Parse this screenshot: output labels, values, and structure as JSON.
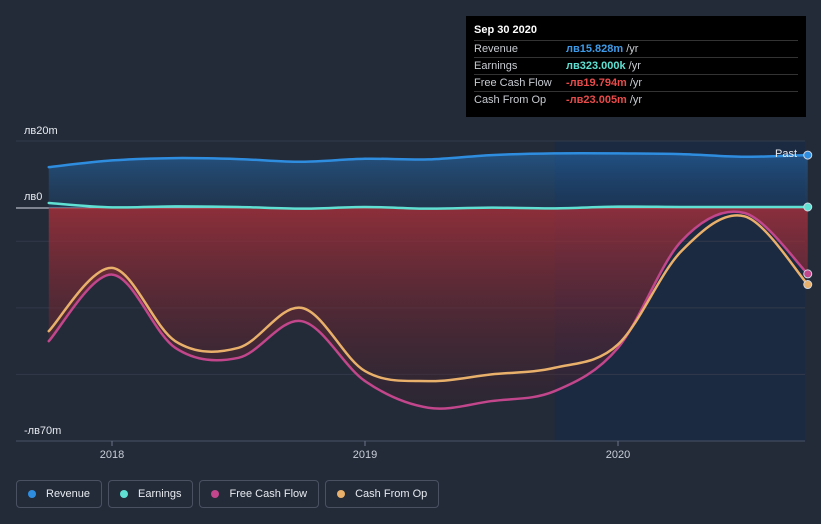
{
  "tooltip": {
    "date": "Sep 30 2020",
    "rows": [
      {
        "label": "Revenue",
        "value": "лв15.828m",
        "unit": "/yr",
        "color": "#3d9be9"
      },
      {
        "label": "Earnings",
        "value": "лв323.000k",
        "unit": "/yr",
        "color": "#5fe0d2"
      },
      {
        "label": "Free Cash Flow",
        "value": "-лв19.794m",
        "unit": "/yr",
        "color": "#e94a4a"
      },
      {
        "label": "Cash From Op",
        "value": "-лв23.005m",
        "unit": "/yr",
        "color": "#e94a4a"
      }
    ]
  },
  "past_label": "Past",
  "legend": [
    {
      "label": "Revenue",
      "color": "#2f8de0"
    },
    {
      "label": "Earnings",
      "color": "#5fe0d2"
    },
    {
      "label": "Free Cash Flow",
      "color": "#c2468b"
    },
    {
      "label": "Cash From Op",
      "color": "#e8b06a"
    }
  ],
  "chart_data": {
    "type": "area",
    "y_axis_labels": [
      "лв20m",
      "лв0",
      "-лв70m"
    ],
    "ylim": [
      -70,
      20
    ],
    "x_ticks": [
      "2018",
      "2019",
      "2020"
    ],
    "x_tick_values": [
      2018.0,
      2019.0,
      2020.0
    ],
    "xlim": [
      2017.6,
      2020.75
    ],
    "forecast_shade_start": 2019.75,
    "series": [
      {
        "name": "Revenue",
        "color": "#2f8de0",
        "x": [
          2017.75,
          2018.0,
          2018.25,
          2018.5,
          2018.75,
          2019.0,
          2019.25,
          2019.5,
          2019.75,
          2020.0,
          2020.25,
          2020.5,
          2020.75
        ],
        "y": [
          12.2,
          14.2,
          14.9,
          14.6,
          13.8,
          14.7,
          14.5,
          15.8,
          16.3,
          16.3,
          16.1,
          15.3,
          15.8
        ]
      },
      {
        "name": "Earnings",
        "color": "#5fe0d2",
        "x": [
          2017.75,
          2018.0,
          2018.25,
          2018.5,
          2018.75,
          2019.0,
          2019.25,
          2019.5,
          2019.75,
          2020.0,
          2020.25,
          2020.5,
          2020.75
        ],
        "y": [
          1.5,
          0.2,
          0.5,
          0.3,
          -0.2,
          0.3,
          -0.2,
          0.1,
          -0.1,
          0.4,
          0.3,
          0.3,
          0.3
        ]
      },
      {
        "name": "Free Cash Flow",
        "color": "#c2468b",
        "x": [
          2017.75,
          2018.0,
          2018.25,
          2018.5,
          2018.75,
          2019.0,
          2019.25,
          2019.5,
          2019.75,
          2020.0,
          2020.25,
          2020.5,
          2020.75
        ],
        "y": [
          -40,
          -20,
          -42,
          -45,
          -34,
          -52,
          -60,
          -58,
          -55,
          -42,
          -10,
          -1.5,
          -19.8
        ]
      },
      {
        "name": "Cash From Op",
        "color": "#e8b06a",
        "x": [
          2017.75,
          2018.0,
          2018.25,
          2018.5,
          2018.75,
          2019.0,
          2019.25,
          2019.5,
          2019.75,
          2020.0,
          2020.25,
          2020.5,
          2020.75
        ],
        "y": [
          -37,
          -18,
          -40,
          -42,
          -30,
          -49,
          -52,
          -50,
          -48,
          -41,
          -13,
          -2.5,
          -23
        ]
      }
    ]
  }
}
